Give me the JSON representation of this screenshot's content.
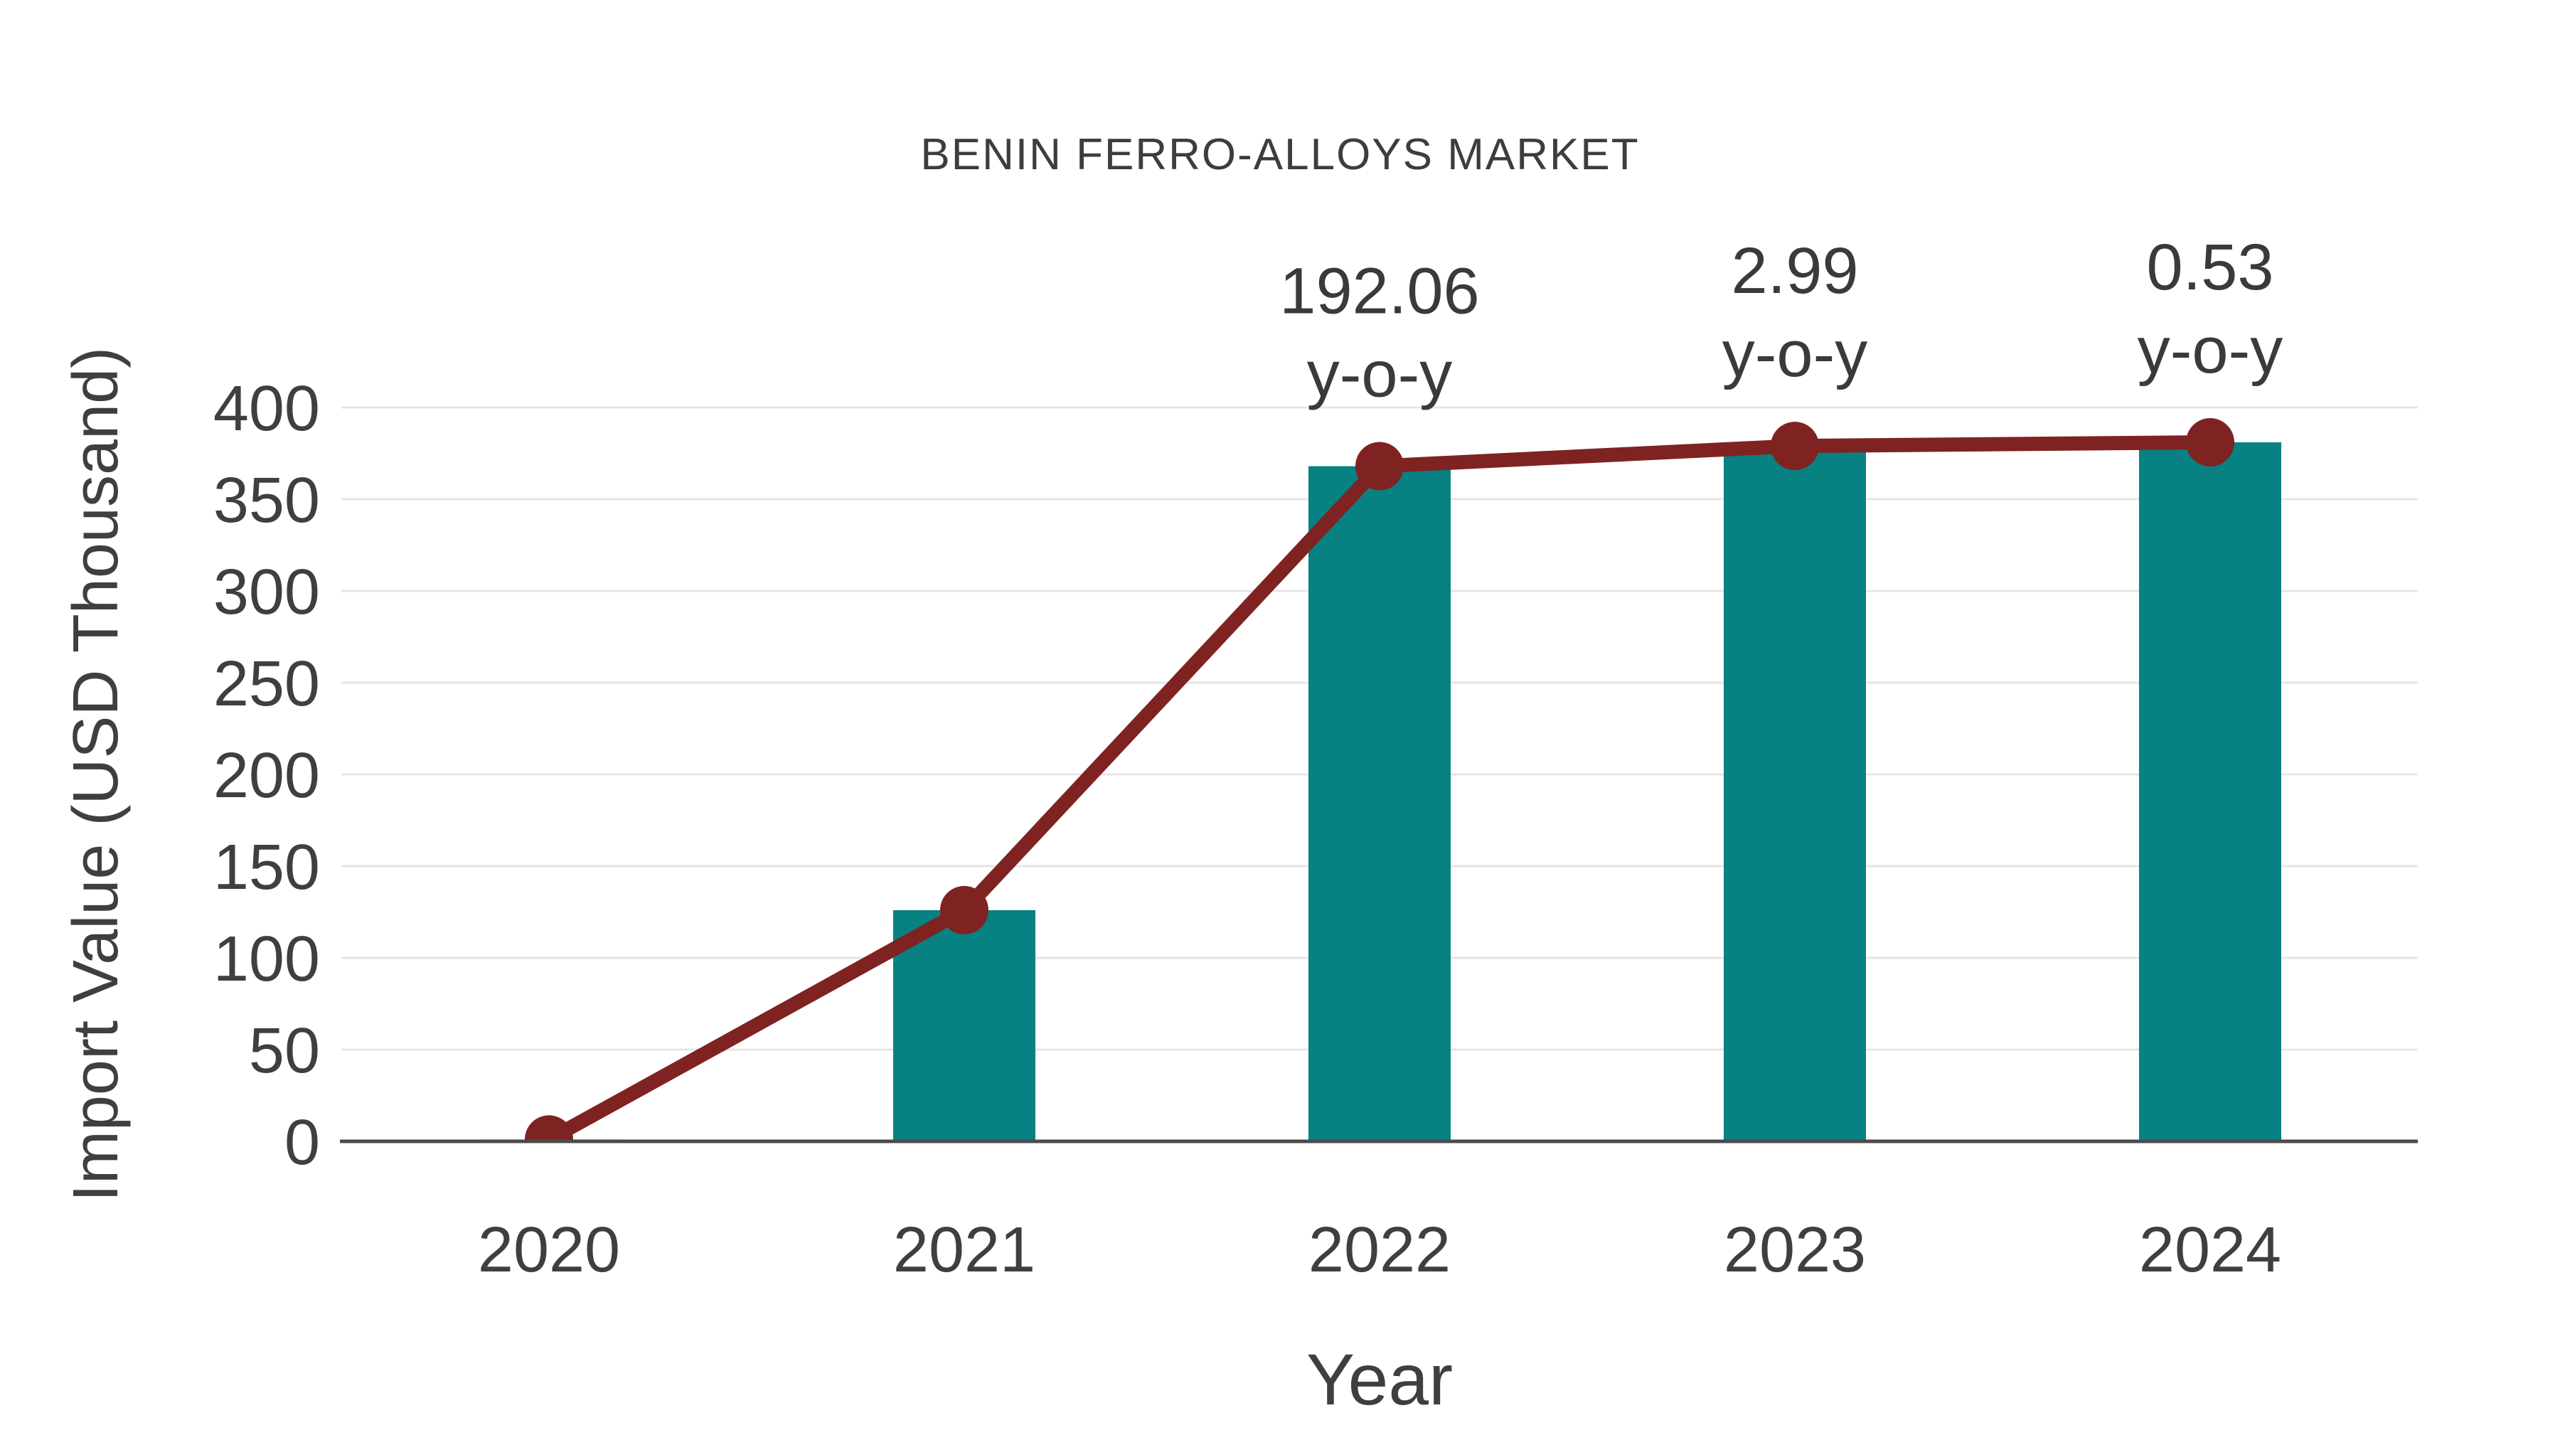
{
  "chart_data": {
    "type": "combo-bar-line",
    "title": "BENIN FERRO-ALLOYS MARKET",
    "xlabel": "Year",
    "ylabel": "Import Value (USD Thousand)",
    "categories": [
      "2020",
      "2021",
      "2022",
      "2023",
      "2024"
    ],
    "series": [
      {
        "name": "import-value-bars",
        "type": "bar",
        "values": [
          1,
          126,
          368,
          379,
          381
        ]
      },
      {
        "name": "import-value-line",
        "type": "line",
        "values": [
          1,
          126,
          368,
          379,
          381
        ]
      }
    ],
    "annotations": [
      {
        "category": "2022",
        "value_label": "192.06",
        "suffix_label": "y-o-y"
      },
      {
        "category": "2023",
        "value_label": "2.99",
        "suffix_label": "y-o-y"
      },
      {
        "category": "2024",
        "value_label": "0.53",
        "suffix_label": "y-o-y"
      }
    ],
    "yticks": [
      0,
      50,
      100,
      150,
      200,
      250,
      300,
      350,
      400
    ],
    "ylim": [
      0,
      400
    ],
    "grid": true,
    "legend": false,
    "colors": {
      "bar": "#088183",
      "line": "#7f2322",
      "marker": "#7f2322",
      "grid": "#e6e6e6",
      "axis": "#4b4b4b",
      "text": "#3f3f3f",
      "background": "#ffffff"
    }
  }
}
